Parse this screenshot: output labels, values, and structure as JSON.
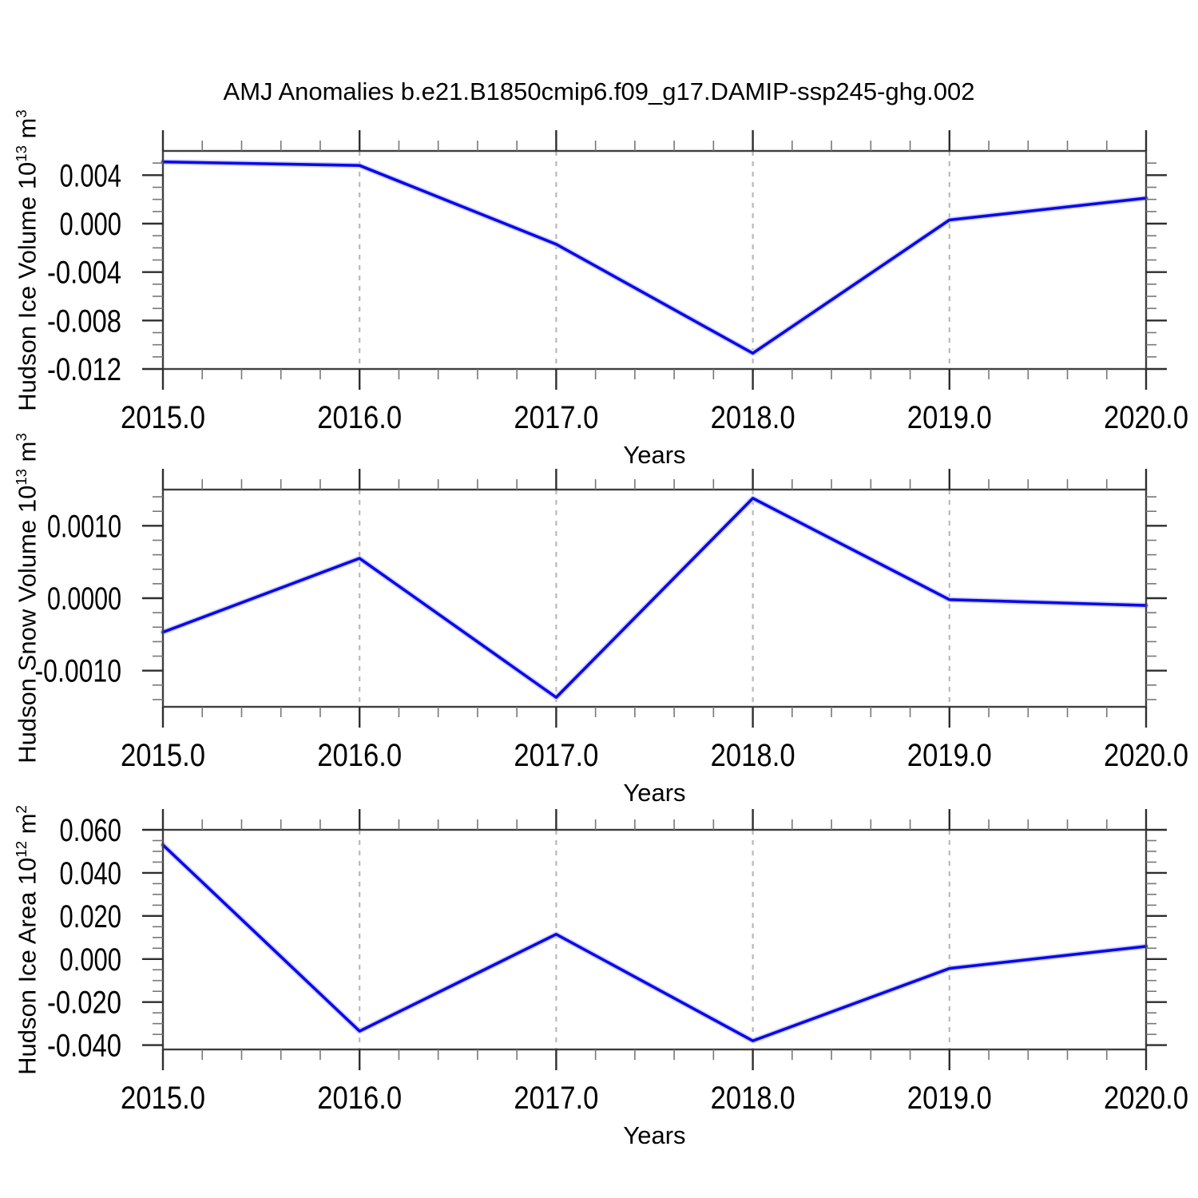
{
  "title": "AMJ Anomalies b.e21.B1850cmip6.f09_g17.DAMIP-ssp245-ghg.002",
  "colors": {
    "line": "#0909eb",
    "line_halo": "#d2d2f6",
    "frame": "#3f3f3f",
    "major_tick": "#2e2e2e",
    "minor_tick": "#777777",
    "grid": "#b9b9b9",
    "text": "#000000",
    "background": "#ffffff"
  },
  "chart_data": [
    {
      "name": "hudson-ice-volume",
      "type": "line",
      "ylabel": "Hudson Ice Volume 10^13 m^3",
      "ylabel_segments": [
        {
          "text": "Hudson Ice Volume 10"
        },
        {
          "text": "13",
          "sup": true
        },
        {
          "text": " m"
        },
        {
          "text": "3",
          "sup": true
        }
      ],
      "xlabel": "Years",
      "x": [
        2015,
        2016,
        2017,
        2018,
        2019,
        2020
      ],
      "values": [
        0.0051,
        0.0048,
        -0.0017,
        -0.0107,
        0.0003,
        0.0021
      ],
      "xlim": [
        2015,
        2020
      ],
      "ylim": [
        -0.012,
        0.006
      ],
      "xticks": [
        2015,
        2016,
        2017,
        2018,
        2019,
        2020
      ],
      "xtick_labels": [
        "2015.0",
        "2016.0",
        "2017.0",
        "2018.0",
        "2019.0",
        "2020.0"
      ],
      "x_minor_step": 0.2,
      "yticks": [
        0.004,
        0,
        -0.004,
        -0.008,
        -0.012
      ],
      "ytick_labels": [
        "0.004",
        "0.000",
        "-0.004",
        "-0.008",
        "-0.012"
      ],
      "y_minor_step": 0.001,
      "grid_x": [
        2016,
        2017,
        2018,
        2019
      ],
      "grid": "vertical-dashed",
      "legend": "none"
    },
    {
      "name": "hudson-snow-volume",
      "type": "line",
      "ylabel": "Hudson Snow Volume 10^13 m^3",
      "ylabel_segments": [
        {
          "text": "Hudson Snow Volume 10"
        },
        {
          "text": "13",
          "sup": true
        },
        {
          "text": " m"
        },
        {
          "text": "3",
          "sup": true
        }
      ],
      "xlabel": "Years",
      "x": [
        2015,
        2016,
        2017,
        2018,
        2019,
        2020
      ],
      "values": [
        -0.00047,
        0.00055,
        -0.00137,
        0.00138,
        -2e-05,
        -0.0001
      ],
      "xlim": [
        2015,
        2020
      ],
      "ylim": [
        -0.0015,
        0.0015
      ],
      "xticks": [
        2015,
        2016,
        2017,
        2018,
        2019,
        2020
      ],
      "xtick_labels": [
        "2015.0",
        "2016.0",
        "2017.0",
        "2018.0",
        "2019.0",
        "2020.0"
      ],
      "x_minor_step": 0.2,
      "yticks": [
        0.001,
        0,
        -0.001
      ],
      "ytick_labels": [
        "0.0010",
        "0.0000",
        "-0.0010"
      ],
      "y_minor_step": 0.0002,
      "grid_x": [
        2016,
        2017,
        2018,
        2019
      ],
      "grid": "vertical-dashed",
      "legend": "none"
    },
    {
      "name": "hudson-ice-area",
      "type": "line",
      "ylabel": "Hudson Ice Area 10^12 m^2",
      "ylabel_segments": [
        {
          "text": "Hudson Ice Area 10"
        },
        {
          "text": "12",
          "sup": true
        },
        {
          "text": " m"
        },
        {
          "text": "2",
          "sup": true
        }
      ],
      "xlabel": "Years",
      "x": [
        2015,
        2016,
        2017,
        2018,
        2019,
        2020
      ],
      "values": [
        0.053,
        -0.0335,
        0.0115,
        -0.038,
        -0.0044,
        0.0059
      ],
      "xlim": [
        2015,
        2020
      ],
      "ylim": [
        -0.042,
        0.06
      ],
      "xticks": [
        2015,
        2016,
        2017,
        2018,
        2019,
        2020
      ],
      "xtick_labels": [
        "2015.0",
        "2016.0",
        "2017.0",
        "2018.0",
        "2019.0",
        "2020.0"
      ],
      "x_minor_step": 0.2,
      "yticks": [
        0.06,
        0.04,
        0.02,
        0,
        -0.02,
        -0.04
      ],
      "ytick_labels": [
        "0.060",
        "0.040",
        "0.020",
        "0.000",
        "-0.020",
        "-0.040"
      ],
      "y_minor_step": 0.005,
      "grid_x": [
        2016,
        2017,
        2018,
        2019
      ],
      "grid": "vertical-dashed",
      "legend": "none"
    }
  ]
}
